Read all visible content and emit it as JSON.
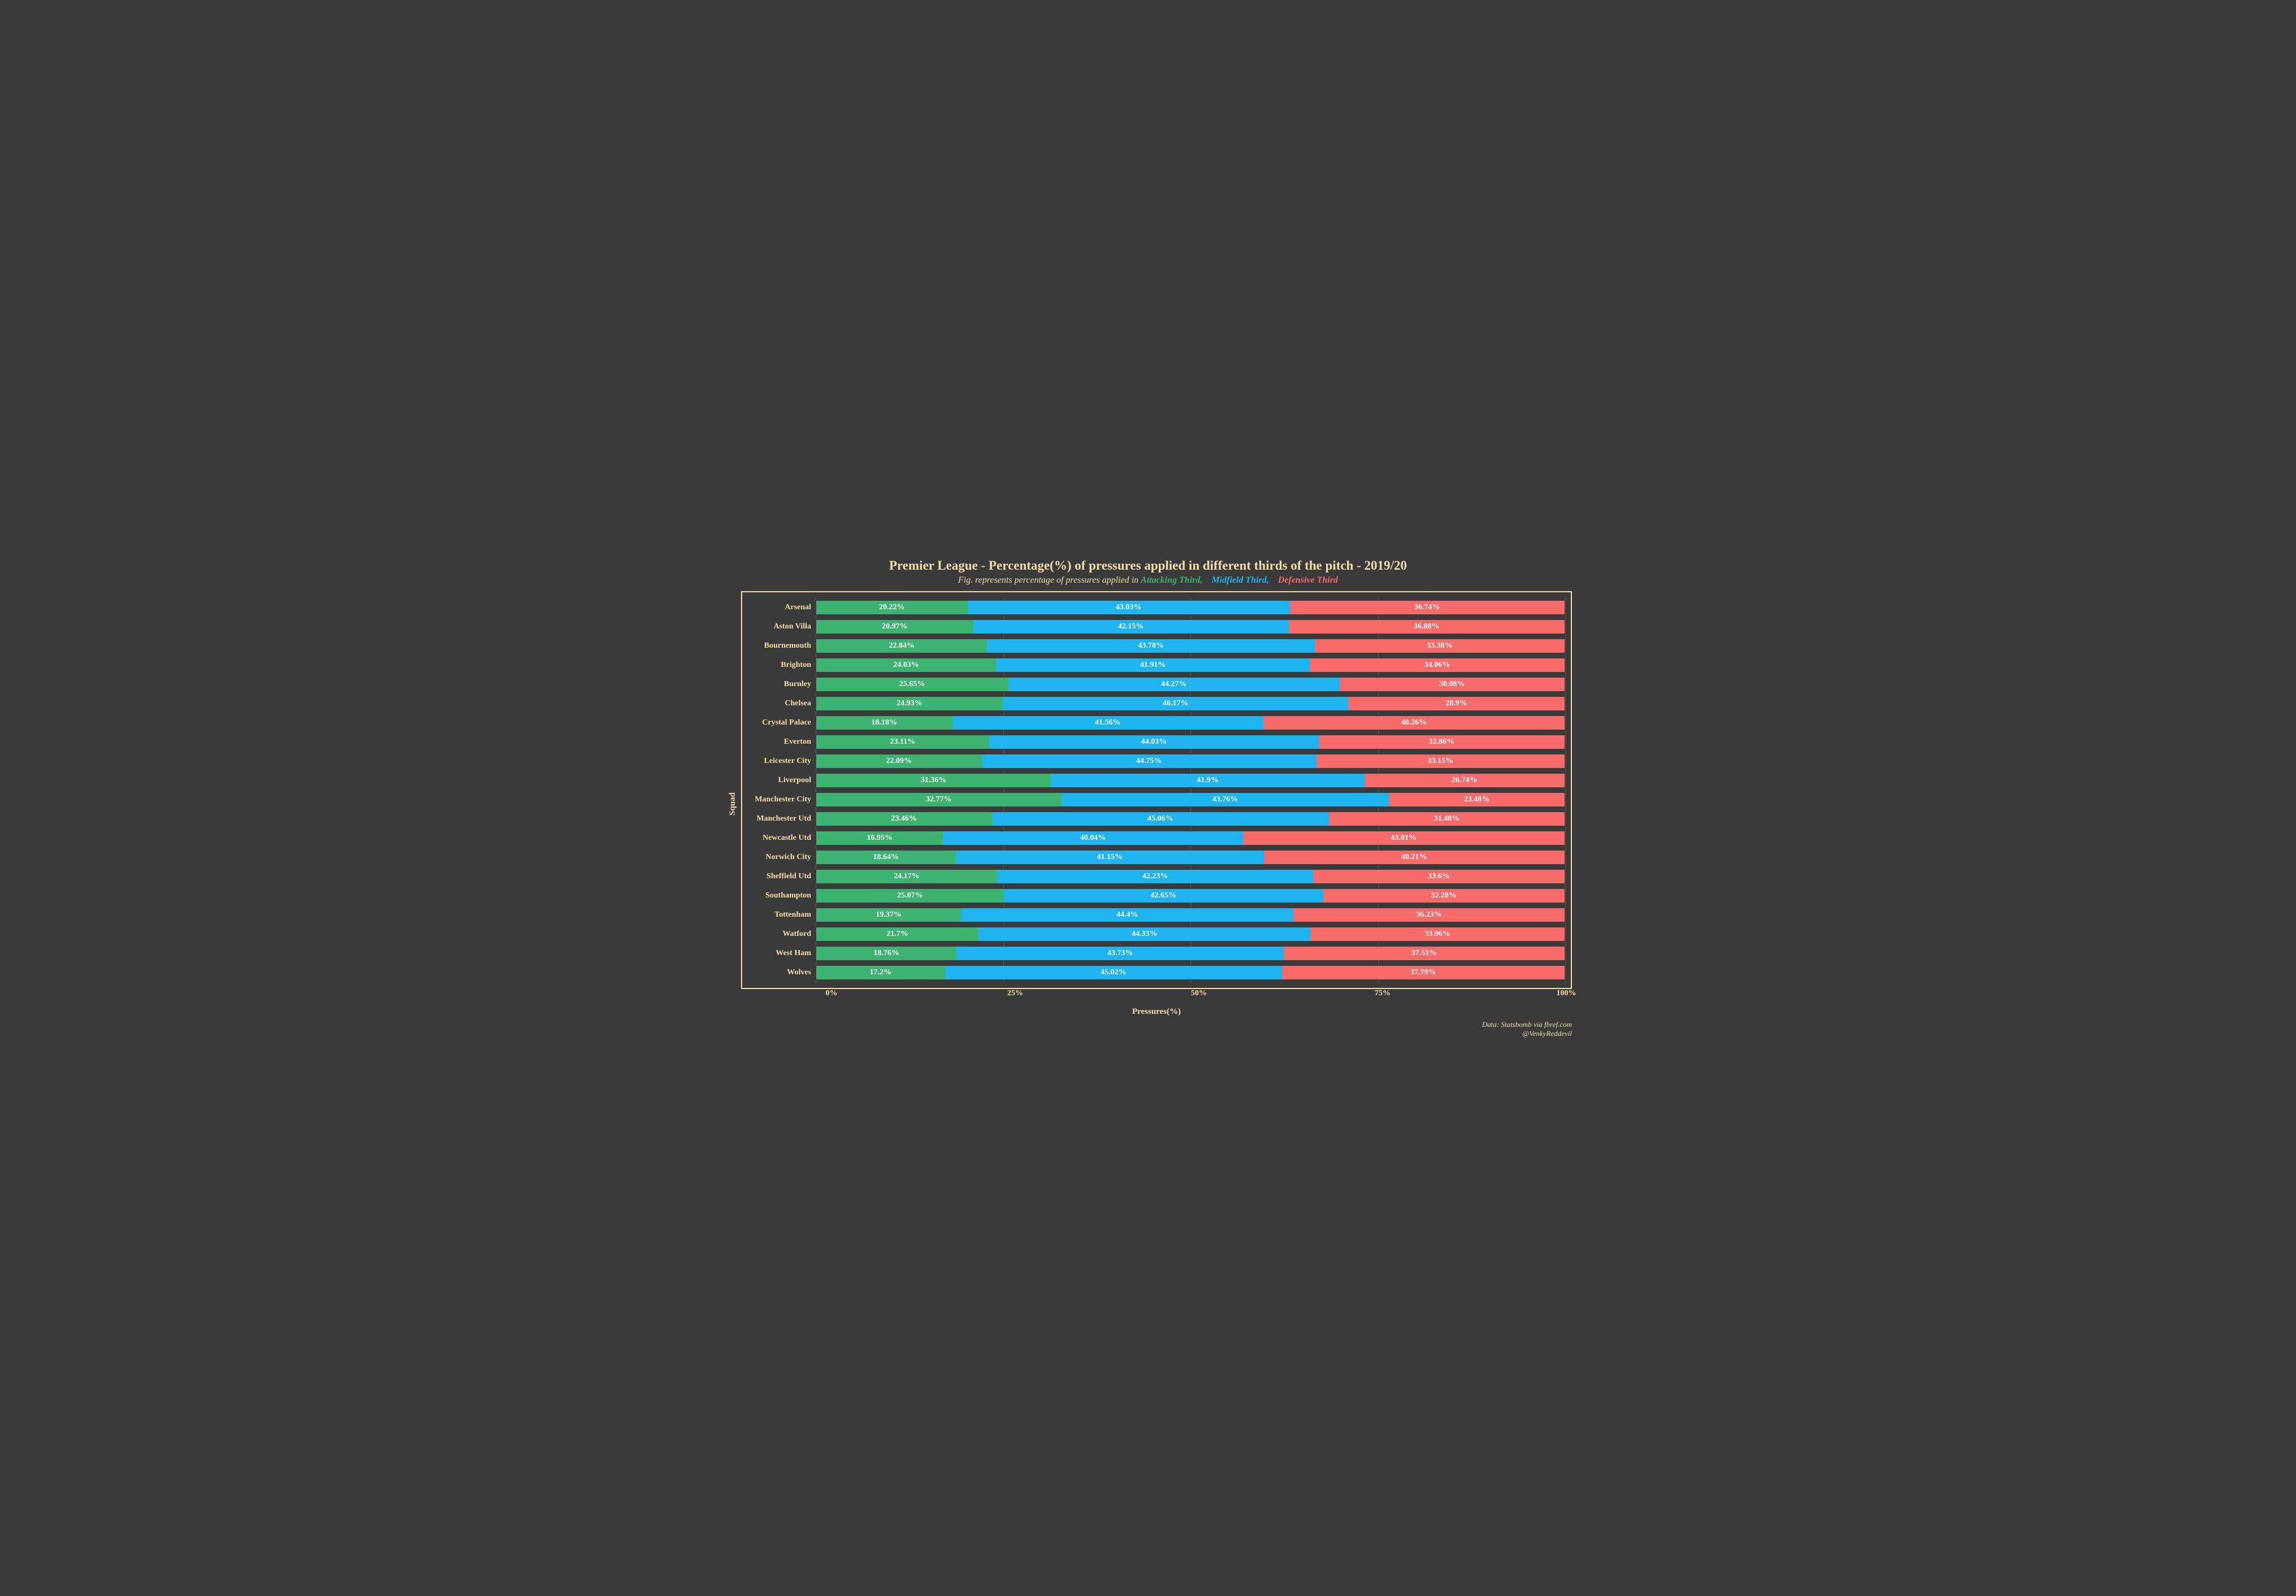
{
  "title": "Premier League - Percentage(%) of pressures applied in different thirds of the pitch - 2019/20",
  "subtitle_prefix": "Fig. represents percentage of pressures applied in  ",
  "legend": {
    "attacking": "Attacking Third,",
    "midfield": "Midfield Third,",
    "defensive": "Defensive Third"
  },
  "y_axis_label": "Squad",
  "x_axis_label": "Pressures(%)",
  "x_ticks": [
    "0%",
    "25%",
    "50%",
    "75%",
    "100%"
  ],
  "x_tick_positions": [
    0,
    25,
    50,
    75,
    100
  ],
  "colors": {
    "background": "#3a3a3a",
    "title": "#f0dfa8",
    "subtitle": "#f0dfa8",
    "attacking": "#3cb371",
    "midfield": "#1eb4f0",
    "defensive": "#f66a6a",
    "border": "#f0dfa8",
    "axis_text": "#f0dfa8",
    "grid": "#555555",
    "bar_border": "#3a3a3a",
    "seg_text": "#ffffff"
  },
  "typography": {
    "title_size": 23,
    "subtitle_size": 16,
    "axis_label_size": 15,
    "tick_label_size": 14,
    "y_label_size": 14,
    "bar_label_size": 14,
    "credit_size": 13
  },
  "chart": {
    "type": "stacked-horizontal-bar",
    "teams": [
      {
        "name": "Arsenal",
        "attacking": 20.22,
        "midfield": 43.03,
        "defensive": 36.74
      },
      {
        "name": "Aston Villa",
        "attacking": 20.97,
        "midfield": 42.15,
        "defensive": 36.88
      },
      {
        "name": "Bournemouth",
        "attacking": 22.84,
        "midfield": 43.78,
        "defensive": 33.38
      },
      {
        "name": "Brighton",
        "attacking": 24.03,
        "midfield": 41.91,
        "defensive": 34.06
      },
      {
        "name": "Burnley",
        "attacking": 25.65,
        "midfield": 44.27,
        "defensive": 30.08
      },
      {
        "name": "Chelsea",
        "attacking": 24.93,
        "midfield": 46.17,
        "defensive": 28.9
      },
      {
        "name": "Crystal Palace",
        "attacking": 18.18,
        "midfield": 41.56,
        "defensive": 40.26
      },
      {
        "name": "Everton",
        "attacking": 23.11,
        "midfield": 44.03,
        "defensive": 32.86
      },
      {
        "name": "Leicester City",
        "attacking": 22.09,
        "midfield": 44.75,
        "defensive": 33.15
      },
      {
        "name": "Liverpool",
        "attacking": 31.36,
        "midfield": 41.9,
        "defensive": 26.74
      },
      {
        "name": "Manchester City",
        "attacking": 32.77,
        "midfield": 43.76,
        "defensive": 23.48
      },
      {
        "name": "Manchester Utd",
        "attacking": 23.46,
        "midfield": 45.06,
        "defensive": 31.48
      },
      {
        "name": "Newcastle Utd",
        "attacking": 16.95,
        "midfield": 40.04,
        "defensive": 43.01
      },
      {
        "name": "Norwich City",
        "attacking": 18.64,
        "midfield": 41.15,
        "defensive": 40.21
      },
      {
        "name": "Sheffield Utd",
        "attacking": 24.17,
        "midfield": 42.23,
        "defensive": 33.6
      },
      {
        "name": "Southampton",
        "attacking": 25.07,
        "midfield": 42.65,
        "defensive": 32.28
      },
      {
        "name": "Tottenham",
        "attacking": 19.37,
        "midfield": 44.4,
        "defensive": 36.23
      },
      {
        "name": "Watford",
        "attacking": 21.7,
        "midfield": 44.33,
        "defensive": 33.96
      },
      {
        "name": "West Ham",
        "attacking": 18.76,
        "midfield": 43.73,
        "defensive": 37.51
      },
      {
        "name": "Wolves",
        "attacking": 17.2,
        "midfield": 45.02,
        "defensive": 37.79
      }
    ]
  },
  "credits": {
    "source": "Data: Statsbomb via fbref.com",
    "author": "@VenkyReddevil"
  }
}
